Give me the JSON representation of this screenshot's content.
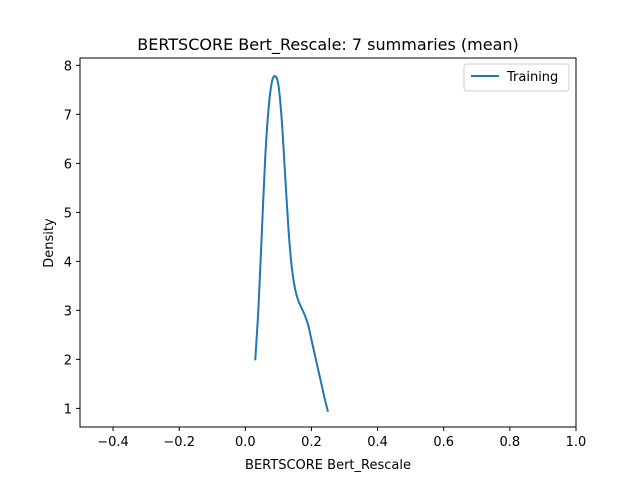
{
  "chart_data": {
    "type": "line",
    "title": "BERTSCORE Bert_Rescale: 7 summaries (mean)",
    "xlabel": "BERTSCORE Bert_Rescale",
    "ylabel": "Density",
    "xlim": [
      -0.5,
      1.0
    ],
    "ylim": [
      0.62,
      8.15
    ],
    "xticks": [
      -0.4,
      -0.2,
      0.0,
      0.2,
      0.4,
      0.6,
      0.8,
      1.0
    ],
    "xtick_labels": [
      "−0.4",
      "−0.2",
      "0.0",
      "0.2",
      "0.4",
      "0.6",
      "0.8",
      "1.0"
    ],
    "yticks": [
      1,
      2,
      3,
      4,
      5,
      6,
      7,
      8
    ],
    "ytick_labels": [
      "1",
      "2",
      "3",
      "4",
      "5",
      "6",
      "7",
      "8"
    ],
    "grid": false,
    "legend_position": "top-right",
    "series": [
      {
        "name": "Training",
        "color": "#1f77b4",
        "x": [
          0.03,
          0.04,
          0.05,
          0.06,
          0.07,
          0.08,
          0.09,
          0.1,
          0.11,
          0.12,
          0.13,
          0.14,
          0.15,
          0.16,
          0.17,
          0.18,
          0.19,
          0.2,
          0.21,
          0.22,
          0.23,
          0.24,
          0.25
        ],
        "y": [
          1.98,
          3.1,
          4.6,
          6.1,
          7.1,
          7.65,
          7.78,
          7.6,
          6.9,
          5.8,
          4.7,
          3.9,
          3.45,
          3.2,
          3.05,
          2.9,
          2.7,
          2.4,
          2.1,
          1.8,
          1.5,
          1.2,
          0.93
        ]
      }
    ]
  }
}
